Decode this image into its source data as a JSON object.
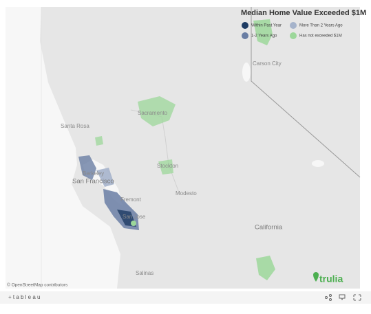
{
  "title": "Median Home Value Exceeded $1M",
  "legend": [
    {
      "label": "Within Past Year",
      "color": "#1d3b63"
    },
    {
      "label": "1-2 Years Ago",
      "color": "#6a7ea4"
    },
    {
      "label": "More Than 2 Years Ago",
      "color": "#a5b3cb"
    },
    {
      "label": "Has not exceeded $1M",
      "color": "#9cd79a"
    }
  ],
  "places": [
    "Carson City",
    "Sacramento",
    "Santa Rosa",
    "Berkeley",
    "San Francisco",
    "Stockton",
    "Modesto",
    "Fremont",
    "San Jose",
    "California",
    "Salinas"
  ],
  "attribution": "© OpenStreetMap contributors",
  "logo": "trulia",
  "footer": {
    "brand": "+ t a b l e a u"
  }
}
